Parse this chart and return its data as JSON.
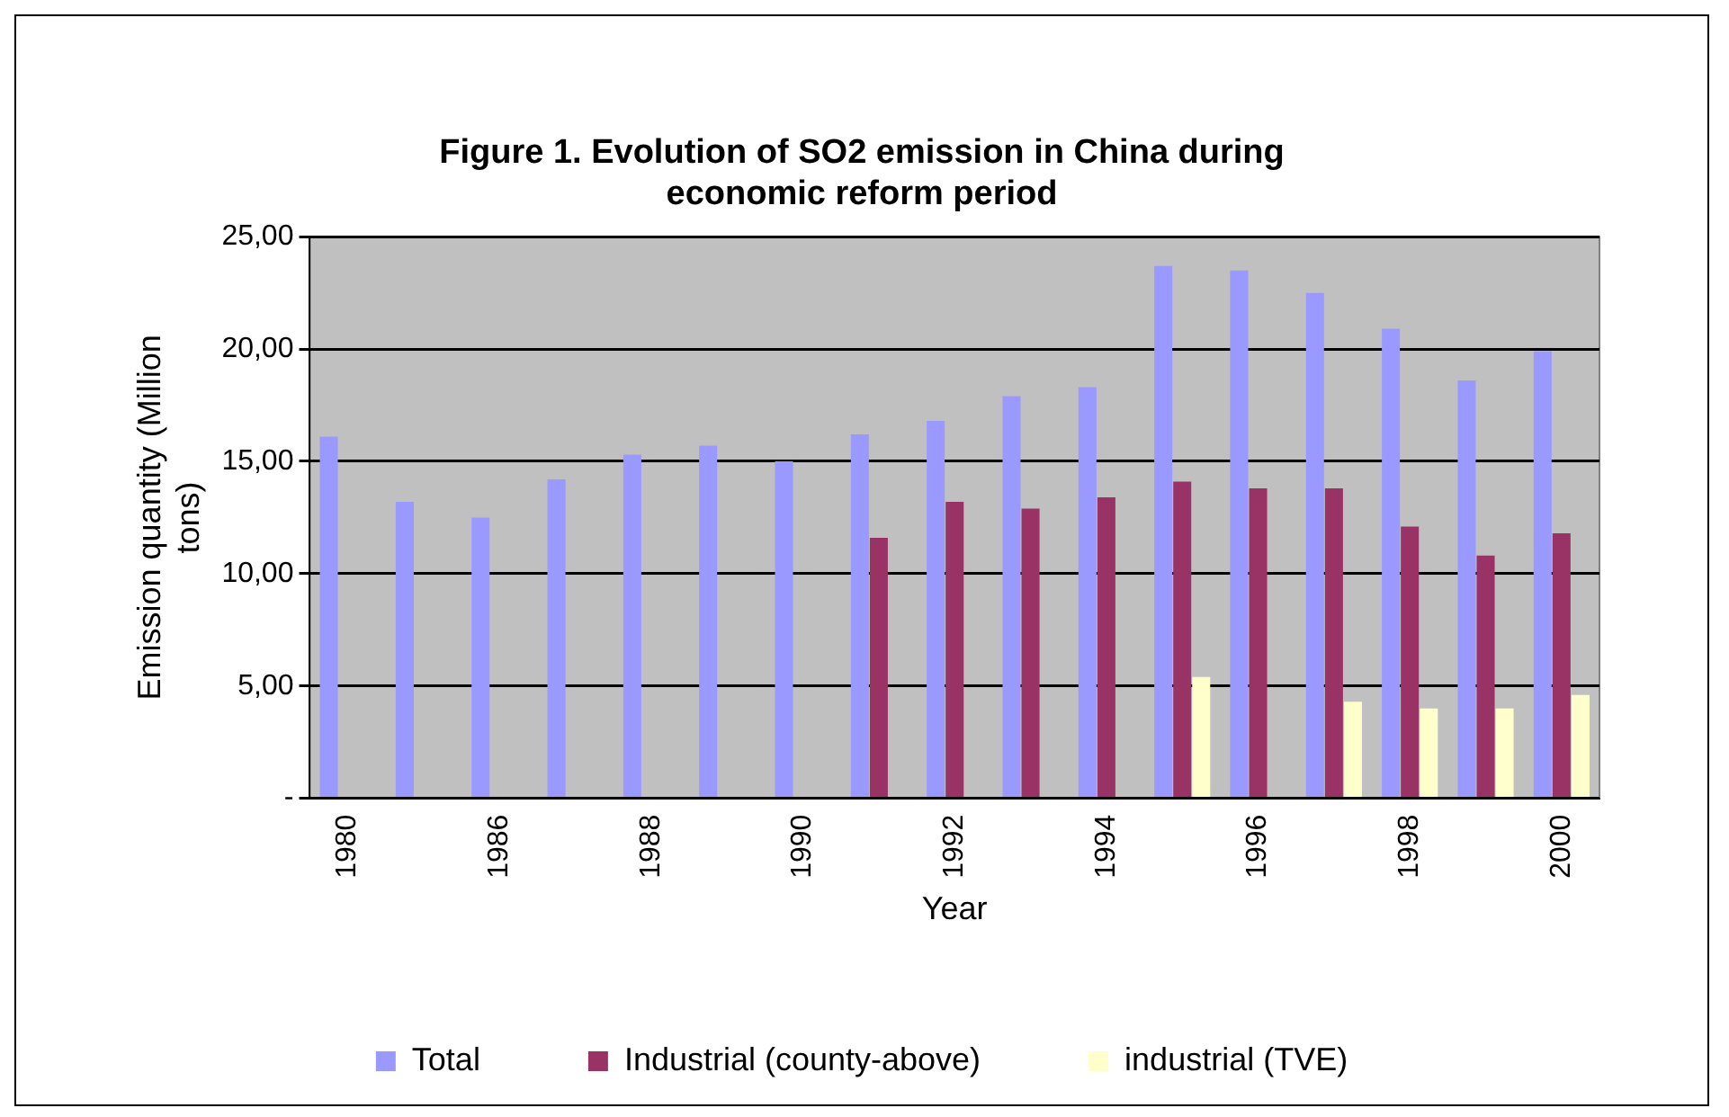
{
  "chart_data": {
    "type": "bar",
    "title": "Figure 1. Evolution of SO2 emission in China during economic reform period",
    "xlabel": "Year",
    "ylabel": "Emission quantity (Million tons)",
    "categories": [
      "1980",
      null,
      "1986",
      null,
      "1988",
      null,
      "1990",
      null,
      "1992",
      null,
      "1994",
      null,
      "1996",
      null,
      "1998",
      null,
      "2000"
    ],
    "series": [
      {
        "name": "Total",
        "color": "#9999ff",
        "values": [
          16.1,
          13.2,
          12.5,
          14.2,
          15.3,
          15.7,
          15.0,
          16.2,
          16.8,
          17.9,
          18.3,
          23.7,
          23.5,
          22.5,
          20.9,
          18.6,
          19.9
        ]
      },
      {
        "name": "Industrial (county-above)",
        "color": "#993366",
        "values": [
          null,
          null,
          null,
          null,
          null,
          null,
          null,
          11.6,
          13.2,
          12.9,
          13.4,
          14.1,
          13.8,
          13.8,
          12.1,
          10.8,
          11.8
        ]
      },
      {
        "name": "industrial (TVE)",
        "color": "#ffffcc",
        "values": [
          null,
          null,
          null,
          null,
          null,
          null,
          null,
          null,
          null,
          null,
          null,
          5.4,
          null,
          4.3,
          4.0,
          4.0,
          4.6
        ]
      }
    ],
    "ylim": [
      0,
      25
    ],
    "yticks": [
      {
        "value": 0,
        "label": "-"
      },
      {
        "value": 5,
        "label": "5,00"
      },
      {
        "value": 10,
        "label": "10,00"
      },
      {
        "value": 15,
        "label": "15,00"
      },
      {
        "value": 20,
        "label": "20,00"
      },
      {
        "value": 25,
        "label": "25,00"
      }
    ],
    "grid": "y",
    "legend": "bottom"
  }
}
